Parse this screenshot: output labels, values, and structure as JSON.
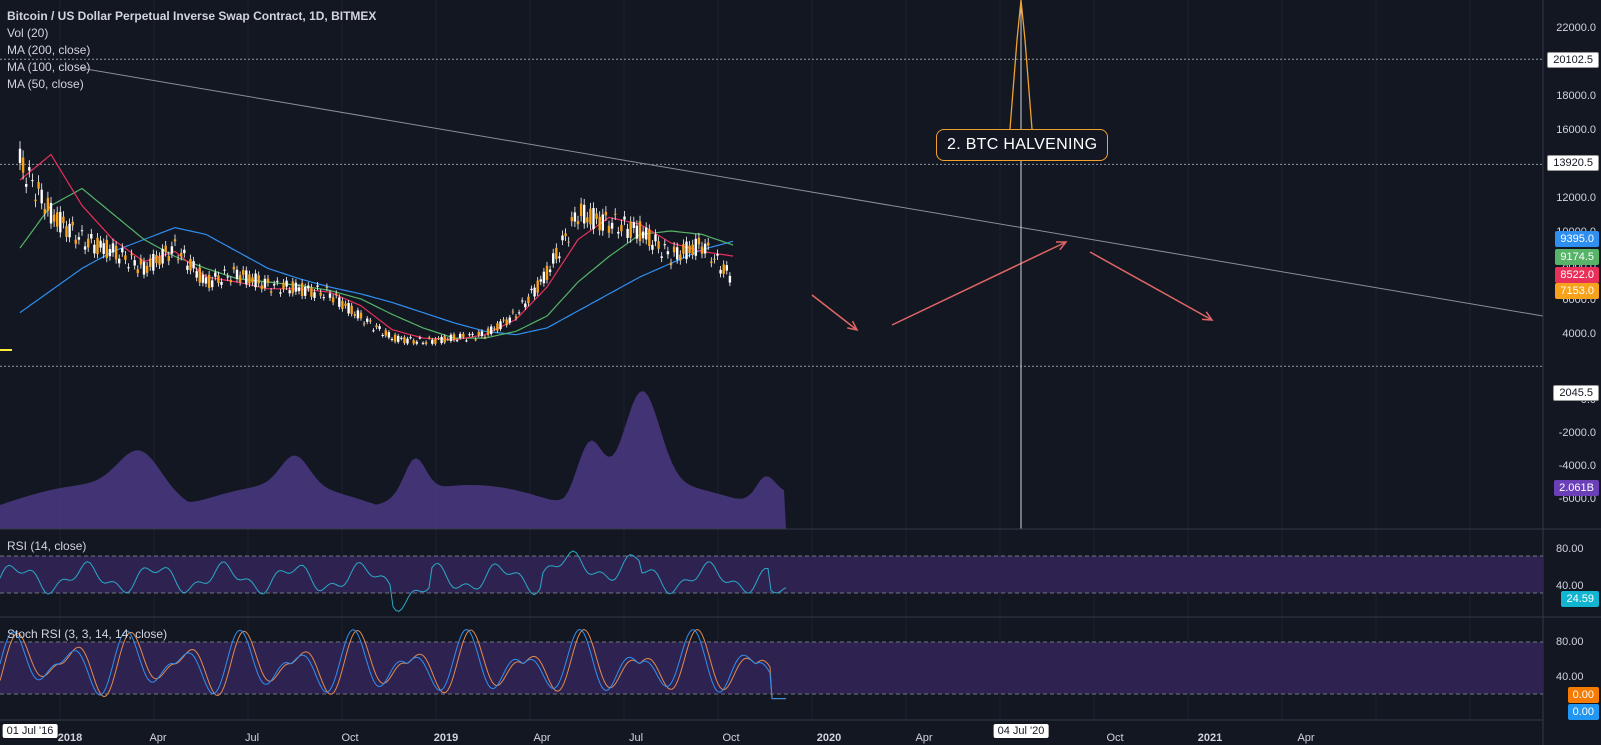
{
  "header": {
    "title": "Bitcoin / US Dollar Perpetual Inverse Swap Contract, 1D, BITMEX",
    "indicators": [
      "Vol (20)",
      "MA (200, close)",
      "MA (100, close)",
      "MA (50, close)"
    ]
  },
  "rsi_label": "RSI (14, close)",
  "stoch_label": "Stoch RSI (3, 3, 14, 14, close)",
  "annotation": "2. BTC HALVENING",
  "price_axis": {
    "ticks": [
      "22000.0",
      "18000.0",
      "16000.0",
      "12000.0",
      "10000.0",
      "8000.0",
      "6000.0",
      "4000.0",
      "0.0",
      "-2000.0",
      "-4000.0",
      "-6000.0"
    ],
    "line_levels": [
      "20102.5",
      "13920.5",
      "2045.5"
    ]
  },
  "badges": {
    "ma200": "9395.0",
    "ma100": "9174.5",
    "ma50": "8522.0",
    "last": "7153.0",
    "volume": "2.061B",
    "rsi": "24.59",
    "stoch_k": "0.00",
    "stoch_d": "0.00"
  },
  "rsi_axis": [
    "80.00",
    "40.00"
  ],
  "stoch_axis": [
    "80.00",
    "40.00"
  ],
  "time_axis": {
    "first_label": "01 Jul '16",
    "marker_label": "04 Jul '20",
    "labels": [
      "2018",
      "Apr",
      "Jul",
      "Oct",
      "2019",
      "Apr",
      "Jul",
      "Oct",
      "2020",
      "Apr",
      "Oct",
      "2021",
      "Apr"
    ]
  },
  "colors": {
    "background": "#131722",
    "candle": "#f7a21b",
    "ma200": "#2f8ff0",
    "ma100": "#56b368",
    "ma50": "#e9305a",
    "volume": "#4b3a82",
    "rsi_band": "#2e2350",
    "rsi_line": "#2aa8c6",
    "stoch_k": "#2f8ff0",
    "stoch_d": "#e08a4d",
    "trend": "#8a8e98",
    "arrow": "#e06666"
  },
  "chart_data": {
    "type": "line",
    "title": "Bitcoin / US Dollar Perpetual Inverse Swap Contract, 1D, BITMEX",
    "x": [
      "2017-12",
      "2018-01",
      "2018-02",
      "2018-03",
      "2018-04",
      "2018-05",
      "2018-06",
      "2018-07",
      "2018-08",
      "2018-09",
      "2018-10",
      "2018-11",
      "2018-12",
      "2019-01",
      "2019-02",
      "2019-03",
      "2019-04",
      "2019-05",
      "2019-06",
      "2019-07",
      "2019-08",
      "2019-09",
      "2019-10",
      "2019-11"
    ],
    "series": [
      {
        "name": "Close",
        "values": [
          14000,
          11000,
          9500,
          8800,
          7800,
          9000,
          7000,
          7500,
          6800,
          6600,
          6300,
          4900,
          3700,
          3500,
          3700,
          3900,
          5100,
          7500,
          11000,
          10500,
          10000,
          8500,
          9200,
          7153
        ]
      },
      {
        "name": "MA (200, close)",
        "values": [
          5200,
          6500,
          7800,
          8800,
          9500,
          10200,
          9800,
          8800,
          7800,
          7200,
          6700,
          6300,
          5800,
          5200,
          4600,
          4100,
          3900,
          4300,
          5300,
          6300,
          7300,
          8100,
          8900,
          9395
        ]
      },
      {
        "name": "MA (100, close)",
        "values": [
          9000,
          11500,
          12500,
          11000,
          9500,
          8500,
          7800,
          7200,
          7000,
          6800,
          6500,
          6000,
          5100,
          4300,
          3700,
          3700,
          4100,
          5000,
          7000,
          8500,
          9800,
          10000,
          9800,
          9174.5
        ]
      },
      {
        "name": "MA (50, close)",
        "values": [
          13000,
          14500,
          11500,
          9500,
          8200,
          8800,
          7300,
          7000,
          6600,
          6600,
          6400,
          5600,
          4200,
          3700,
          3600,
          3900,
          4800,
          6700,
          9500,
          10800,
          10400,
          9300,
          8800,
          8522
        ]
      }
    ],
    "ylim": [
      2045.5,
      22000
    ],
    "y_tick_labels": [
      "4000.0",
      "6000.0",
      "8000.0",
      "10000.0",
      "12000.0",
      "16000.0",
      "18000.0",
      "22000.0"
    ]
  }
}
